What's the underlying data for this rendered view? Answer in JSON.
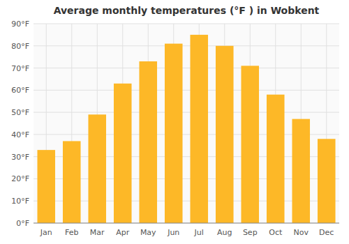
{
  "chart_data": {
    "type": "bar",
    "title": "Average monthly temperatures (°F ) in Wobkent",
    "categories": [
      "Jan",
      "Feb",
      "Mar",
      "Apr",
      "May",
      "Jun",
      "Jul",
      "Aug",
      "Sep",
      "Oct",
      "Nov",
      "Dec"
    ],
    "values": [
      33,
      37,
      49,
      63,
      73,
      81,
      85,
      80,
      71,
      58,
      47,
      38
    ],
    "color": "#FDB827",
    "ylim": [
      0,
      90
    ],
    "yticks": [
      {
        "value": 0,
        "label": "0°F"
      },
      {
        "value": 10,
        "label": "10°F"
      },
      {
        "value": 20,
        "label": "20°F"
      },
      {
        "value": 30,
        "label": "30°F"
      },
      {
        "value": 40,
        "label": "40°F"
      },
      {
        "value": 50,
        "label": "50°F"
      },
      {
        "value": 60,
        "label": "60°F"
      },
      {
        "value": 70,
        "label": "70°F"
      },
      {
        "value": 80,
        "label": "80°F"
      },
      {
        "value": 90,
        "label": "90°F"
      }
    ],
    "grid": true
  }
}
